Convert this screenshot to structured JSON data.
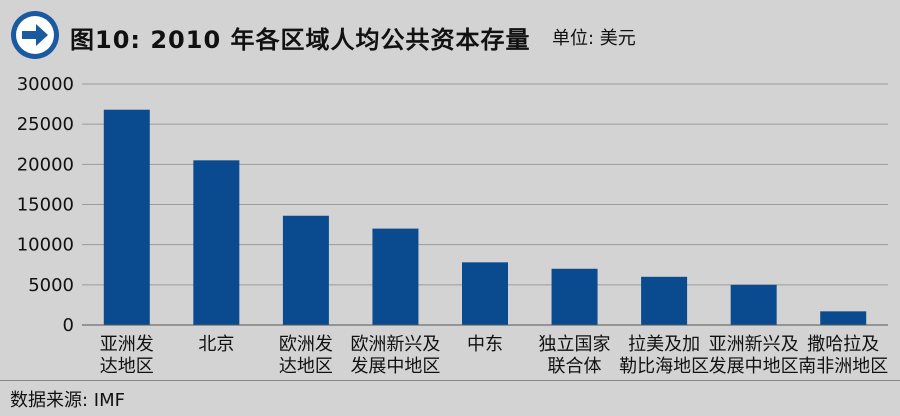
{
  "header": {
    "title": "图10: 2010 年各区域人均公共资本存量",
    "unit": "单位: 美元"
  },
  "footer": {
    "source": "数据来源: IMF"
  },
  "icon": {
    "name": "arrow-right-circle-icon"
  },
  "colors": {
    "bar": "#0a4b8f",
    "grid": "#9b9b9b",
    "background": "#d3d3d3",
    "icon": "#1a5aa0"
  },
  "chart_data": {
    "type": "bar",
    "title": "图10: 2010 年各区域人均公共资本存量",
    "xlabel": "",
    "ylabel": "",
    "ylim": [
      0,
      30000
    ],
    "yticks": [
      0,
      5000,
      10000,
      15000,
      20000,
      25000,
      30000
    ],
    "grid": true,
    "categories": [
      [
        "亚洲发",
        "达地区"
      ],
      [
        "北京"
      ],
      [
        "欧洲发",
        "达地区"
      ],
      [
        "欧洲新兴及",
        "发展中地区"
      ],
      [
        "中东"
      ],
      [
        "独立国家",
        "联合体"
      ],
      [
        "拉美及加",
        "勒比海地区"
      ],
      [
        "亚洲新兴及",
        "发展中地区"
      ],
      [
        "撒哈拉及",
        "南非洲地区"
      ]
    ],
    "values": [
      26800,
      20500,
      13600,
      12000,
      7800,
      7000,
      6000,
      5000,
      1700
    ]
  }
}
